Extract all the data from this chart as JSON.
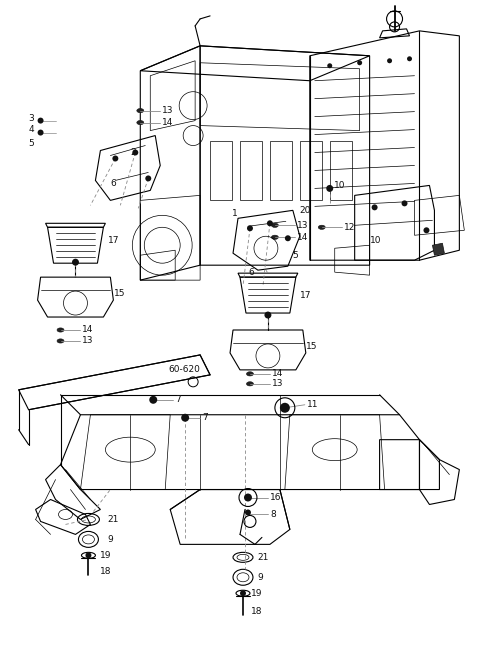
{
  "bg_color": "#ffffff",
  "line_color": "#000000",
  "fig_width": 4.8,
  "fig_height": 6.56,
  "dpi": 100
}
